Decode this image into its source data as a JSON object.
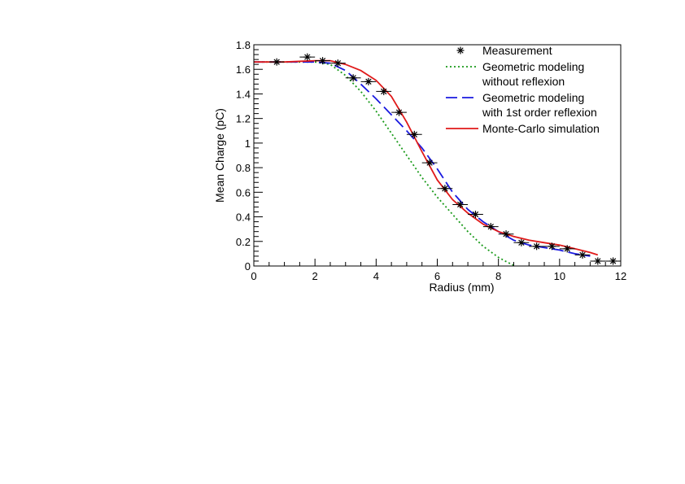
{
  "chart_data": {
    "type": "line",
    "title": "",
    "xlabel": "Radius (mm)",
    "ylabel": "Mean Charge (pC)",
    "xlim": [
      0,
      12
    ],
    "ylim": [
      0,
      1.8
    ],
    "xticks": [
      "0",
      "2",
      "4",
      "6",
      "8",
      "10",
      "12"
    ],
    "yticks": [
      "0",
      "0.2",
      "0.4",
      "0.6",
      "0.8",
      "1",
      "1.2",
      "1.4",
      "1.6",
      "1.8"
    ],
    "grid": false,
    "legend_position": "top-right",
    "series": [
      {
        "name": "Measurement",
        "kind": "markers",
        "color": "#000000",
        "x": [
          0.75,
          1.75,
          2.25,
          2.75,
          3.25,
          3.75,
          4.25,
          4.75,
          5.25,
          5.75,
          6.25,
          6.75,
          7.25,
          7.75,
          8.25,
          8.75,
          9.25,
          9.75,
          10.25,
          10.75,
          11.25,
          11.75
        ],
        "y": [
          1.66,
          1.7,
          1.67,
          1.65,
          1.53,
          1.5,
          1.42,
          1.25,
          1.07,
          0.84,
          0.63,
          0.5,
          0.42,
          0.32,
          0.26,
          0.19,
          0.16,
          0.16,
          0.14,
          0.09,
          0.04,
          0.04
        ],
        "x_err": 0.25
      },
      {
        "name": "Geometric modeling without reflexion",
        "legend_lines": [
          "Geometric modeling",
          "without reflexion"
        ],
        "kind": "dotted",
        "color": "#1a9a1a",
        "x": [
          0,
          1,
          2,
          2.5,
          3,
          3.5,
          4,
          4.5,
          5,
          5.5,
          6,
          6.5,
          7,
          7.5,
          8,
          8.3,
          8.55
        ],
        "y": [
          1.66,
          1.66,
          1.66,
          1.64,
          1.55,
          1.42,
          1.26,
          1.08,
          0.9,
          0.72,
          0.56,
          0.42,
          0.28,
          0.16,
          0.07,
          0.03,
          0.0
        ]
      },
      {
        "name": "Geometric modeling with 1st order reflexion",
        "legend_lines": [
          "Geometric modeling",
          "with 1st order reflexion"
        ],
        "kind": "dashed",
        "color": "#1a1ae0",
        "x": [
          0,
          1,
          2,
          2.5,
          3,
          3.5,
          4,
          4.5,
          5,
          5.5,
          6,
          6.5,
          7,
          7.5,
          8,
          8.5,
          9,
          9.5,
          10,
          10.5,
          11
        ],
        "y": [
          1.66,
          1.66,
          1.66,
          1.65,
          1.59,
          1.48,
          1.36,
          1.23,
          1.1,
          0.96,
          0.79,
          0.6,
          0.46,
          0.36,
          0.28,
          0.21,
          0.17,
          0.15,
          0.13,
          0.1,
          0.08
        ]
      },
      {
        "name": "Monte-Carlo simulation",
        "legend_lines": [
          "Monte-Carlo simulation"
        ],
        "kind": "solid",
        "color": "#e01a1a",
        "x": [
          0,
          1,
          2,
          2.5,
          3,
          3.5,
          4,
          4.5,
          5,
          5.5,
          6,
          6.5,
          7,
          7.5,
          8,
          8.5,
          9,
          9.5,
          10,
          10.5,
          11,
          11.25
        ],
        "y": [
          1.66,
          1.66,
          1.67,
          1.67,
          1.64,
          1.59,
          1.51,
          1.38,
          1.17,
          0.93,
          0.7,
          0.54,
          0.43,
          0.34,
          0.28,
          0.24,
          0.21,
          0.19,
          0.17,
          0.14,
          0.11,
          0.09
        ]
      }
    ]
  }
}
